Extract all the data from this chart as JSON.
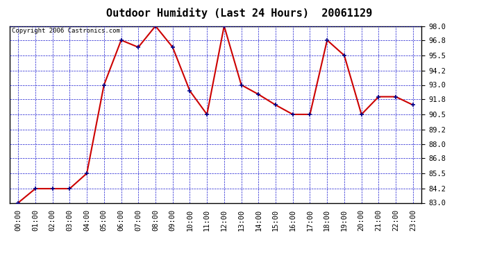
{
  "title": "Outdoor Humidity (Last 24 Hours)  20061129",
  "copyright_text": "Copyright 2006 Castronics.com",
  "x_labels": [
    "00:00",
    "01:00",
    "02:00",
    "03:00",
    "04:00",
    "05:00",
    "06:00",
    "07:00",
    "08:00",
    "09:00",
    "10:00",
    "11:00",
    "12:00",
    "13:00",
    "14:00",
    "15:00",
    "16:00",
    "17:00",
    "18:00",
    "19:00",
    "20:00",
    "21:00",
    "22:00",
    "23:00"
  ],
  "y_values": [
    83.0,
    84.2,
    84.2,
    84.2,
    85.5,
    93.0,
    96.8,
    96.2,
    98.0,
    96.2,
    92.5,
    90.5,
    98.0,
    93.0,
    92.2,
    91.3,
    90.5,
    90.5,
    96.8,
    95.5,
    90.5,
    92.0,
    92.0,
    91.3
  ],
  "y_ticks": [
    83.0,
    84.2,
    85.5,
    86.8,
    88.0,
    89.2,
    90.5,
    91.8,
    93.0,
    94.2,
    95.5,
    96.8,
    98.0
  ],
  "ylim": [
    83.0,
    98.0
  ],
  "line_color": "#cc0000",
  "marker_color": "#00008b",
  "fig_bg_color": "#ffffff",
  "plot_bg_color": "#ffffff",
  "grid_color": "#0000cc",
  "border_color": "#000000",
  "title_fontsize": 11,
  "copyright_fontsize": 6.5,
  "tick_fontsize": 7.5
}
